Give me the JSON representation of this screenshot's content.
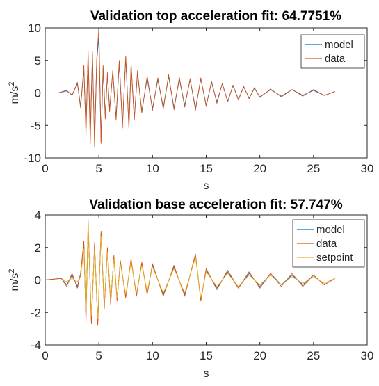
{
  "chart_data": [
    {
      "type": "line",
      "title": "Validation top acceleration fit: 64.7751%",
      "xlabel": "s",
      "ylabel": "m/s",
      "ylabel_sup": "2",
      "xlim": [
        0,
        30
      ],
      "ylim": [
        -10,
        10
      ],
      "xticks": [
        0,
        5,
        10,
        15,
        20,
        25,
        30
      ],
      "xtick_labels": [
        "0",
        "5",
        "10",
        "15",
        "20",
        "25",
        "30"
      ],
      "yticks": [
        -10,
        -5,
        0,
        5,
        10
      ],
      "ytick_labels": [
        "-10",
        "-5",
        "0",
        "5",
        "10"
      ],
      "grid": false,
      "legend_position": "top-right",
      "series": [
        {
          "name": "model",
          "color": "#0072BD",
          "x": [
            0,
            1.2,
            2.0,
            2.5,
            3.0,
            3.3,
            3.6,
            3.8,
            4.0,
            4.2,
            4.4,
            4.6,
            4.8,
            5.0,
            5.2,
            5.4,
            5.6,
            5.8,
            6.0,
            6.3,
            6.6,
            6.9,
            7.2,
            7.5,
            7.8,
            8.0,
            8.3,
            8.6,
            9.0,
            9.5,
            10.0,
            10.5,
            11.0,
            11.5,
            12.0,
            12.5,
            13.0,
            13.5,
            14.0,
            14.5,
            15.0,
            15.5,
            16.0,
            16.5,
            17.0,
            17.5,
            18.0,
            18.5,
            19.0,
            19.5,
            20.0,
            21.0,
            22.0,
            23.0,
            24.0,
            25.0,
            26.0,
            27.0
          ],
          "y": [
            0,
            0.0,
            0.3,
            -0.3,
            1.4,
            -2.0,
            3.5,
            -5.5,
            5.6,
            -6.2,
            6.0,
            -7.3,
            4.8,
            8.6,
            -7.5,
            3.8,
            -3.6,
            2.8,
            -2.5,
            3.2,
            -3.8,
            4.6,
            -4.8,
            5.3,
            -5.2,
            4.2,
            -3.8,
            3.0,
            -2.8,
            2.2,
            -2.4,
            2.0,
            -2.2,
            2.5,
            -2.3,
            2.1,
            -1.9,
            2.0,
            -2.4,
            2.1,
            -1.9,
            1.6,
            -1.4,
            1.4,
            -1.3,
            1.1,
            -1.0,
            0.9,
            -0.8,
            0.7,
            -0.6,
            0.5,
            -0.5,
            0.5,
            -0.4,
            0.4,
            -0.4,
            0.2
          ]
        },
        {
          "name": "data",
          "color": "#D95319",
          "x": [
            0,
            1.2,
            2.0,
            2.5,
            3.0,
            3.3,
            3.6,
            3.8,
            4.0,
            4.2,
            4.4,
            4.6,
            4.8,
            5.0,
            5.2,
            5.4,
            5.6,
            5.8,
            6.0,
            6.3,
            6.6,
            6.9,
            7.2,
            7.5,
            7.8,
            8.0,
            8.3,
            8.6,
            9.0,
            9.5,
            10.0,
            10.5,
            11.0,
            11.5,
            12.0,
            12.5,
            13.0,
            13.5,
            14.0,
            14.5,
            15.0,
            15.5,
            16.0,
            16.5,
            17.0,
            17.5,
            18.0,
            18.5,
            19.0,
            19.5,
            20.0,
            21.0,
            22.0,
            23.0,
            24.0,
            25.0,
            26.0,
            27.0
          ],
          "y": [
            0,
            0.0,
            0.4,
            -0.4,
            1.6,
            -2.4,
            4.2,
            -6.5,
            6.5,
            -7.8,
            6.3,
            -8.3,
            5.2,
            10.0,
            -7.8,
            4.2,
            -4.0,
            3.1,
            -2.9,
            3.5,
            -4.2,
            5.0,
            -5.4,
            5.7,
            -5.6,
            4.5,
            -4.2,
            3.4,
            -3.1,
            2.6,
            -2.7,
            2.3,
            -2.5,
            2.8,
            -2.6,
            2.4,
            -2.2,
            2.2,
            -2.7,
            2.3,
            -2.1,
            1.8,
            -1.6,
            1.5,
            -1.4,
            1.2,
            -1.1,
            1.0,
            -0.9,
            0.8,
            -0.7,
            0.6,
            -0.6,
            0.5,
            -0.5,
            0.5,
            -0.4,
            0.2
          ]
        }
      ]
    },
    {
      "type": "line",
      "title": "Validation base acceleration fit: 57.747%",
      "xlabel": "s",
      "ylabel": "m/s",
      "ylabel_sup": "2",
      "xlim": [
        0,
        30
      ],
      "ylim": [
        -4,
        4
      ],
      "xticks": [
        0,
        5,
        10,
        15,
        20,
        25,
        30
      ],
      "xtick_labels": [
        "0",
        "5",
        "10",
        "15",
        "20",
        "25",
        "30"
      ],
      "yticks": [
        -4,
        -2,
        0,
        2,
        4
      ],
      "ytick_labels": [
        "-4",
        "-2",
        "0",
        "2",
        "4"
      ],
      "grid": false,
      "legend_position": "top-right",
      "series": [
        {
          "name": "model",
          "color": "#0072BD",
          "x": [
            0,
            1.5,
            2.0,
            2.5,
            3.0,
            3.3,
            3.6,
            3.8,
            4.0,
            4.3,
            4.6,
            4.9,
            5.2,
            5.5,
            5.8,
            6.1,
            6.4,
            6.7,
            7.0,
            7.5,
            8.0,
            8.5,
            9.0,
            9.5,
            10.0,
            11.0,
            12.0,
            13.0,
            14.0,
            14.5,
            15.0,
            16.0,
            17.0,
            18.0,
            19.0,
            20.0,
            21.0,
            22.0,
            23.0,
            24.0,
            25.0,
            26.0,
            27.0
          ],
          "y": [
            0,
            0.1,
            -0.3,
            0.3,
            -0.4,
            0.4,
            2.2,
            -2.3,
            3.3,
            -2.4,
            2.1,
            -2.6,
            2.8,
            -1.6,
            1.8,
            -1.3,
            1.4,
            -1.2,
            1.1,
            -1.0,
            1.2,
            -0.9,
            1.0,
            -0.8,
            0.9,
            -0.9,
            0.8,
            -0.9,
            1.5,
            -1.2,
            0.6,
            -0.5,
            0.5,
            -0.5,
            0.4,
            -0.4,
            0.4,
            -0.3,
            0.3,
            -0.3,
            0.3,
            -0.3,
            0.1
          ]
        },
        {
          "name": "data",
          "color": "#D95319",
          "x": [
            0,
            1.5,
            2.0,
            2.5,
            3.0,
            3.3,
            3.6,
            3.8,
            4.0,
            4.3,
            4.6,
            4.9,
            5.2,
            5.5,
            5.8,
            6.1,
            6.4,
            6.7,
            7.0,
            7.5,
            8.0,
            8.5,
            9.0,
            9.5,
            10.0,
            11.0,
            12.0,
            13.0,
            14.0,
            14.5,
            15.0,
            16.0,
            17.0,
            18.0,
            19.0,
            20.0,
            21.0,
            22.0,
            23.0,
            24.0,
            25.0,
            26.0,
            27.0
          ],
          "y": [
            0,
            0.1,
            -0.4,
            0.4,
            -0.5,
            0.4,
            2.4,
            -2.6,
            3.7,
            -2.7,
            2.3,
            -2.8,
            3.0,
            -1.8,
            2.0,
            -1.5,
            1.5,
            -1.3,
            1.2,
            -1.1,
            1.3,
            -1.0,
            1.1,
            -0.9,
            1.0,
            -1.0,
            0.9,
            -1.0,
            1.6,
            -1.3,
            0.7,
            -0.6,
            0.6,
            -0.5,
            0.5,
            -0.5,
            0.4,
            -0.4,
            0.4,
            -0.4,
            0.3,
            -0.3,
            0.1
          ]
        },
        {
          "name": "setpoint",
          "color": "#EDB120",
          "x": [
            0,
            1.5,
            2.0,
            2.5,
            3.0,
            3.3,
            3.6,
            3.8,
            4.0,
            4.3,
            4.6,
            4.9,
            5.2,
            5.5,
            5.8,
            6.1,
            6.4,
            6.7,
            7.0,
            7.5,
            8.0,
            8.5,
            9.0,
            9.5,
            10.0,
            11.0,
            12.0,
            13.0,
            14.0,
            14.5,
            15.0,
            16.0,
            17.0,
            18.0,
            19.0,
            20.0,
            21.0,
            22.0,
            23.0,
            24.0,
            25.0,
            26.0,
            27.0
          ],
          "y": [
            0,
            0.0,
            -0.1,
            0.1,
            -0.1,
            0.2,
            1.9,
            -2.1,
            3.4,
            -2.2,
            1.9,
            -2.4,
            2.7,
            -1.5,
            1.7,
            -1.2,
            1.3,
            -1.1,
            1.0,
            -0.9,
            1.1,
            -0.8,
            0.9,
            -0.7,
            0.8,
            -0.8,
            0.7,
            -0.8,
            1.4,
            -1.1,
            0.5,
            -0.4,
            0.4,
            -0.4,
            0.3,
            -0.3,
            0.3,
            -0.3,
            0.2,
            -0.2,
            0.2,
            -0.2,
            0.1
          ]
        }
      ]
    }
  ]
}
